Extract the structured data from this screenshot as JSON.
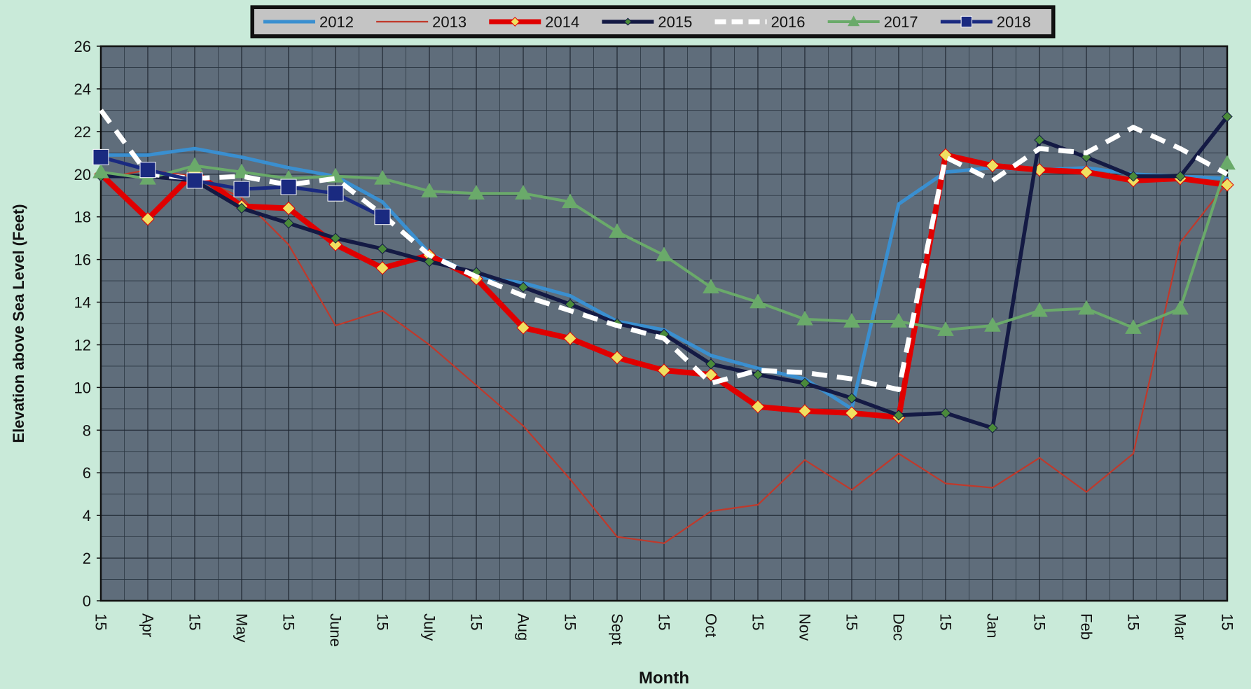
{
  "chart_data": {
    "type": "line",
    "title": "",
    "xlabel": "Month",
    "ylabel": "Elevation above Sea Level (Feet)",
    "ylim": [
      0,
      26
    ],
    "yticks": [
      0,
      2,
      4,
      6,
      8,
      10,
      12,
      14,
      16,
      18,
      20,
      22,
      24,
      26
    ],
    "grid": true,
    "legend_position": "top-center",
    "categories": [
      "15",
      "Apr",
      "15",
      "May",
      "15",
      "June",
      "15",
      "July",
      "15",
      "Aug",
      "15",
      "Sept",
      "15",
      "Oct",
      "15",
      "Nov",
      "15",
      "Dec",
      "15",
      "Jan",
      "15",
      "Feb",
      "15",
      "Mar",
      "15"
    ],
    "series": [
      {
        "name": "2012",
        "color": "#3a8fd0",
        "values": [
          20.9,
          20.9,
          21.2,
          20.8,
          20.3,
          19.9,
          18.7,
          16.3,
          15.2,
          14.9,
          14.3,
          13.1,
          12.7,
          11.5,
          10.9,
          10.4,
          9.0,
          18.6,
          20.1,
          20.3,
          20.2,
          20.3,
          20.0,
          19.9,
          19.8
        ]
      },
      {
        "name": "2013",
        "color": "#c0392b",
        "values": [
          19.8,
          20.2,
          19.9,
          18.9,
          16.7,
          12.9,
          13.6,
          12.0,
          10.1,
          8.2,
          5.7,
          3.0,
          2.7,
          4.2,
          4.5,
          6.6,
          5.2,
          6.9,
          5.5,
          5.3,
          6.7,
          5.1,
          6.9,
          16.8,
          19.6
        ]
      },
      {
        "name": "2014",
        "color": "#e00000",
        "marker_color": "#f0e060",
        "values": [
          20.0,
          17.9,
          20.1,
          18.5,
          18.4,
          16.7,
          15.6,
          16.2,
          15.1,
          12.8,
          12.3,
          11.4,
          10.8,
          10.6,
          9.1,
          8.9,
          8.8,
          8.6,
          20.9,
          20.4,
          20.2,
          20.1,
          19.7,
          19.8,
          19.5
        ]
      },
      {
        "name": "2015",
        "color": "#141a44",
        "marker_color": "#4a8a3a",
        "values": [
          19.9,
          19.9,
          19.7,
          18.4,
          17.7,
          17.0,
          16.5,
          15.9,
          15.4,
          14.7,
          13.9,
          13.0,
          12.5,
          11.1,
          10.6,
          10.2,
          9.5,
          8.7,
          8.8,
          8.1,
          21.6,
          20.8,
          19.9,
          19.9,
          22.7
        ]
      },
      {
        "name": "2016",
        "color": "#ffffff",
        "values": [
          23.0,
          20.0,
          19.8,
          19.9,
          19.5,
          19.8,
          18.1,
          16.2,
          15.2,
          14.3,
          13.6,
          12.9,
          12.3,
          10.2,
          10.8,
          10.7,
          10.4,
          9.9,
          20.8,
          19.7,
          21.2,
          21.0,
          22.2,
          21.2,
          20.0
        ]
      },
      {
        "name": "2017",
        "color": "#6aaa6a",
        "values": [
          20.1,
          19.8,
          20.4,
          20.1,
          19.8,
          19.9,
          19.8,
          19.2,
          19.1,
          19.1,
          18.7,
          17.3,
          16.2,
          14.7,
          14.0,
          13.2,
          13.1,
          13.1,
          12.7,
          12.9,
          13.6,
          13.7,
          12.8,
          13.7,
          20.5
        ]
      },
      {
        "name": "2018",
        "color": "#1a2a80",
        "values": [
          20.8,
          20.2,
          19.7,
          19.3,
          19.4,
          19.1,
          18.0,
          null,
          null,
          null,
          null,
          null,
          null,
          null,
          null,
          null,
          null,
          null,
          null,
          null,
          null,
          null,
          null,
          null,
          null
        ]
      }
    ]
  }
}
